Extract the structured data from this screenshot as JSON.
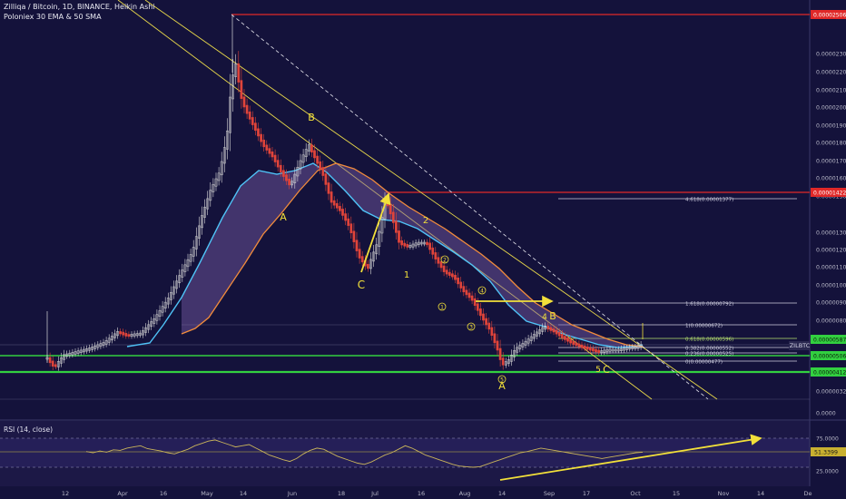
{
  "header": {
    "title": "Zilliqa / Bitcoin, 1D, BINANCE, Heikin Ashi",
    "indicator": "Poloniex 30 EMA & 50 SMA",
    "symbol_badge": "ZILBTC"
  },
  "colors": {
    "background": "#14123b",
    "up_candle": "#d8d8d8",
    "down_candle": "#e0443a",
    "ema": "#4fc3f7",
    "sma": "#f28c3c",
    "cloud": "#7a5fa8",
    "trendline": "#e8d84a",
    "support_green": "#32d040",
    "resistance_red": "#e02828",
    "rsi_line": "#c9b45a",
    "annotation": "#f2e03a",
    "axis_text": "#b8b8c8",
    "white_line": "#e8e8e8"
  },
  "chart_data": {
    "type": "candlestick",
    "title": "Zilliqa / Bitcoin, 1D, BINANCE, Heikin Ashi",
    "y_axis": {
      "ticks": [
        "0.00002300",
        "0.00002200",
        "0.00002100",
        "0.00002000",
        "0.00001900",
        "0.00001800",
        "0.00001700",
        "0.00001600",
        "0.00001500",
        "0.00001300",
        "0.00001200",
        "0.00001100",
        "0.00001000",
        "0.00000900",
        "0.00000800",
        "0.00000700",
        "0.00000320",
        "0.0000"
      ],
      "price_labels": [
        {
          "value": "0.00002506",
          "color": "red"
        },
        {
          "value": "0.00001422",
          "color": "red"
        },
        {
          "value": "0.00000587",
          "color": "green"
        },
        {
          "value": "0.00000506",
          "color": "green"
        },
        {
          "value": "0.00000412",
          "color": "green"
        }
      ]
    },
    "x_axis": {
      "ticks": [
        "12",
        "Apr",
        "16",
        "May",
        "14",
        "Jun",
        "18",
        "Jul",
        "16",
        "Aug",
        "14",
        "Sep",
        "17",
        "Oct",
        "15",
        "Nov",
        "14",
        "De"
      ]
    },
    "fibonacci": [
      {
        "label": "4.618(0.00001377)"
      },
      {
        "label": "1.618(0.00000792)"
      },
      {
        "label": "1(0.00000672)"
      },
      {
        "label": "0.618(0.00000596)"
      },
      {
        "label": "0.382(0.00000552)"
      },
      {
        "label": "0.236(0.00000525)"
      },
      {
        "label": "0(0.00000477)"
      }
    ],
    "wave_labels": [
      "B",
      "A",
      "C",
      "2",
      "1",
      "A",
      "B",
      "C",
      "4",
      "5",
      "1",
      "2",
      "3",
      "4",
      "5"
    ],
    "rsi": {
      "name": "RSI (14, close)",
      "value": "51.3399",
      "ticks": [
        "75.0000",
        "25.0000"
      ],
      "values": [
        52,
        50,
        53,
        51,
        55,
        54,
        58,
        60,
        62,
        57,
        55,
        53,
        50,
        48,
        52,
        56,
        62,
        66,
        70,
        72,
        68,
        64,
        60,
        62,
        64,
        58,
        52,
        46,
        42,
        38,
        35,
        40,
        48,
        54,
        58,
        56,
        50,
        44,
        40,
        36,
        32,
        30,
        34,
        40,
        46,
        50,
        56,
        62,
        58,
        52,
        46,
        42,
        38,
        34,
        30,
        27,
        26,
        25,
        26,
        30,
        34,
        38,
        42,
        46,
        50,
        52,
        55,
        58,
        56,
        54,
        52,
        50,
        48,
        46,
        44,
        42,
        40,
        42,
        44,
        46,
        48,
        50,
        51
      ]
    }
  }
}
